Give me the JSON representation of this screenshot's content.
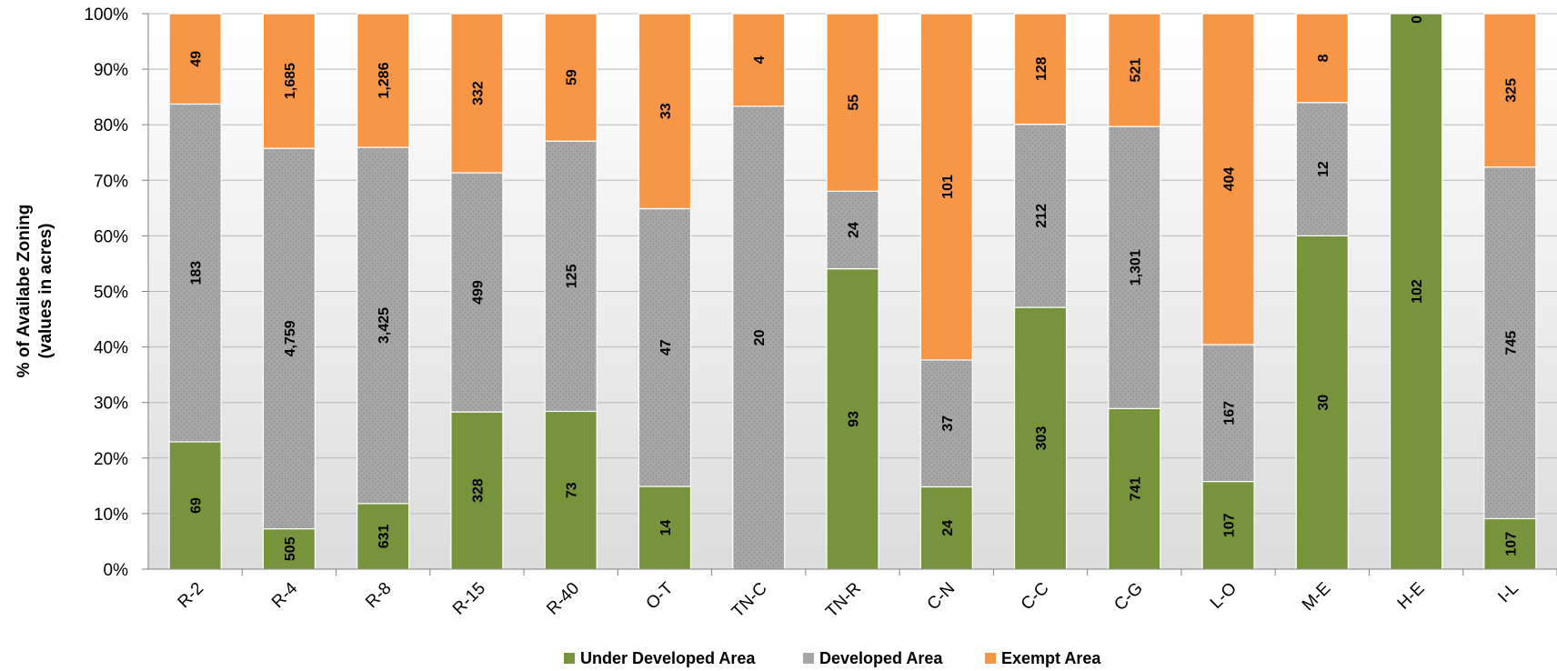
{
  "chart_data": {
    "type": "bar",
    "stacked": "percent",
    "categories": [
      "R-2",
      "R-4",
      "R-8",
      "R-15",
      "R-40",
      "O-T",
      "TN-C",
      "TN-R",
      "C-N",
      "C-C",
      "C-G",
      "L-O",
      "M-E",
      "H-E",
      "I-L"
    ],
    "series": [
      {
        "name": "Under Developed Area",
        "color": "#77933c",
        "values": [
          69,
          505,
          631,
          328,
          73,
          14,
          0,
          93,
          24,
          303,
          741,
          107,
          30,
          102,
          107
        ],
        "labels": [
          "69",
          "505",
          "631",
          "328",
          "73",
          "14",
          "",
          "93",
          "24",
          "303",
          "741",
          "107",
          "30",
          "102",
          "107"
        ]
      },
      {
        "name": "Developed Area",
        "color": "#a6a6a6",
        "values": [
          183,
          4759,
          3425,
          499,
          125,
          47,
          20,
          24,
          37,
          212,
          1301,
          167,
          12,
          0,
          745
        ],
        "labels": [
          "183",
          "4,759",
          "3,425",
          "499",
          "125",
          "47",
          "20",
          "24",
          "37",
          "212",
          "1,301",
          "167",
          "12",
          "",
          "745"
        ]
      },
      {
        "name": "Exempt Area",
        "color": "#f79646",
        "values": [
          49,
          1685,
          1286,
          332,
          59,
          33,
          4,
          55,
          101,
          128,
          521,
          404,
          8,
          0,
          325
        ],
        "labels": [
          "49",
          "1,685",
          "1,286",
          "332",
          "59",
          "33",
          "4",
          "55",
          "101",
          "128",
          "521",
          "404",
          "8",
          "0",
          "325"
        ]
      }
    ],
    "ylabel_line1": "% of Availabe Zoning",
    "ylabel_line2": "(values in acres)",
    "yticks": [
      "0%",
      "10%",
      "20%",
      "30%",
      "40%",
      "50%",
      "60%",
      "70%",
      "80%",
      "90%",
      "100%"
    ],
    "ylim": [
      0,
      100
    ],
    "grid": true,
    "legend_position": "bottom"
  }
}
